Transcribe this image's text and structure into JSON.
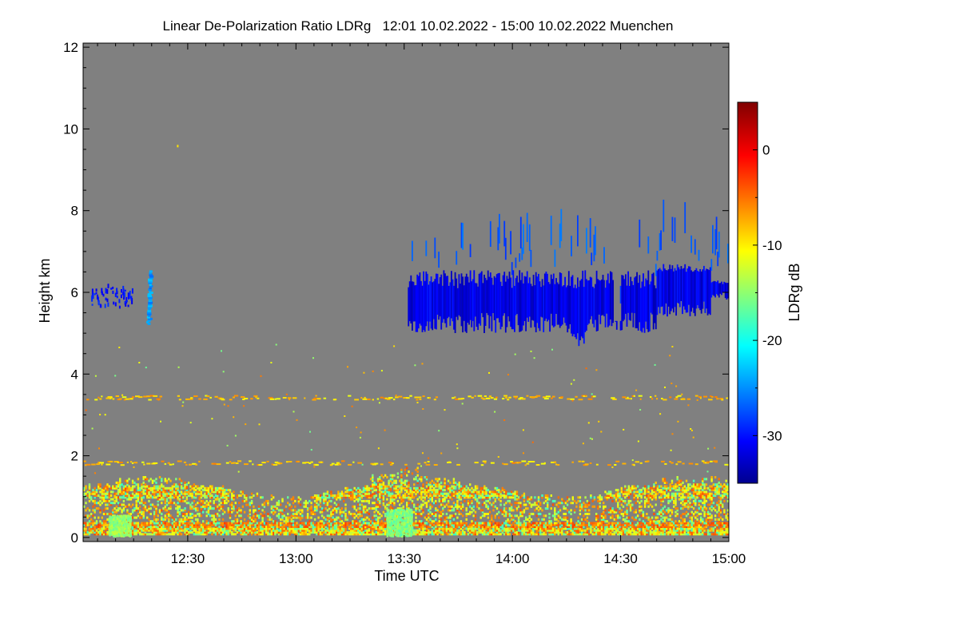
{
  "chart_data": {
    "type": "heatmap",
    "title": "Linear De-Polarization Ratio LDRg   12:01 10.02.2022 - 15:00 10.02.2022 Muenchen",
    "xlabel": "Time UTC",
    "ylabel": "Height km",
    "x_range_minutes": [
      721,
      900
    ],
    "x_ticks": [
      {
        "label": "12:30",
        "value": 750
      },
      {
        "label": "13:00",
        "value": 780
      },
      {
        "label": "13:30",
        "value": 810
      },
      {
        "label": "14:00",
        "value": 840
      },
      {
        "label": "14:30",
        "value": 870
      },
      {
        "label": "15:00",
        "value": 900
      }
    ],
    "y_range": [
      -0.1,
      12.1
    ],
    "y_ticks": [
      0,
      2,
      4,
      6,
      8,
      10,
      12
    ],
    "colorbar": {
      "label": "LDRg dB",
      "range": [
        -35,
        5
      ],
      "ticks": [
        0,
        -10,
        -20,
        -30
      ]
    },
    "background_color": "#808080",
    "regions": [
      {
        "name": "cirrus-cloud-main",
        "t_start": 811,
        "t_end": 900,
        "h_bottom": 4.9,
        "h_top": 6.7,
        "ldr_db": -31
      },
      {
        "name": "cirrus-fallstreak",
        "t_start": 738.5,
        "t_end": 739.5,
        "h_bottom": 5.2,
        "h_top": 6.5,
        "ldr_db": -24
      },
      {
        "name": "sparse-cirrus",
        "t_start": 723,
        "t_end": 735,
        "h_bottom": 5.6,
        "h_top": 6.1,
        "ldr_db": -31
      },
      {
        "name": "boundary-layer-aerosol",
        "t_start": 721,
        "t_end": 900,
        "h_bottom": 0.05,
        "h_top": 1.35,
        "ldr_db": -10
      },
      {
        "name": "noise-layer-3.4km",
        "t_start": 721,
        "t_end": 900,
        "h_bottom": 3.35,
        "h_top": 3.45,
        "ldr_db": -5
      },
      {
        "name": "noise-layer-1.8km",
        "t_start": 721,
        "t_end": 900,
        "h_bottom": 1.75,
        "h_top": 1.85,
        "ldr_db": -5
      }
    ]
  }
}
